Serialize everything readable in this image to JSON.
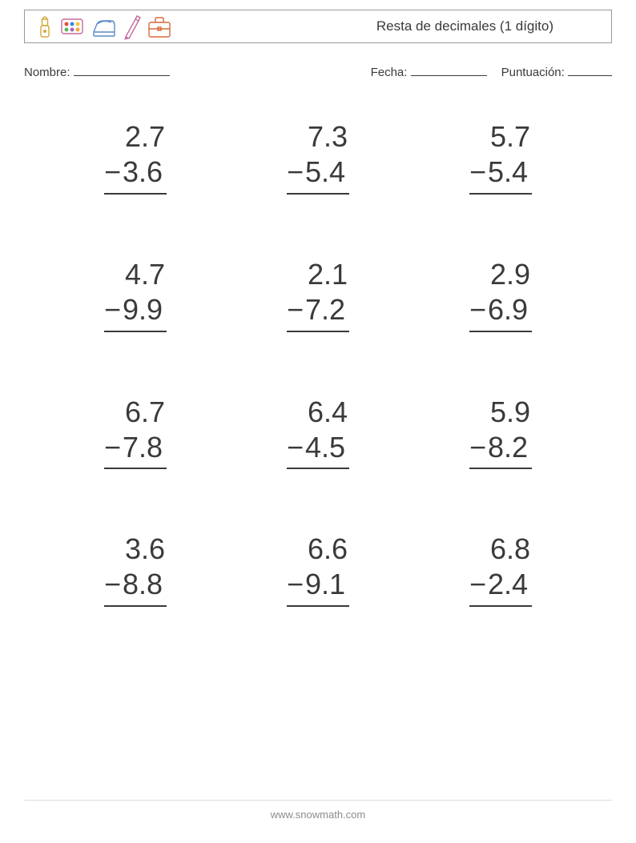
{
  "header": {
    "title": "Resta de decimales (1 dígito)",
    "title_fontsize": 17,
    "border_color": "#9a9a9a",
    "icons": [
      "glue-icon",
      "palette-icon",
      "stapler-icon",
      "pencil-icon",
      "briefcase-icon"
    ]
  },
  "info": {
    "name_label": "Nombre:",
    "date_label": "Fecha:",
    "score_label": "Puntuación:"
  },
  "worksheet": {
    "type": "vertical_subtraction",
    "operator": "−",
    "columns": 3,
    "rows": 4,
    "number_fontsize": 36,
    "number_color": "#3a3a3a",
    "rule_color": "#3a3a3a",
    "background_color": "#ffffff",
    "problems": [
      {
        "minuend": "2.7",
        "subtrahend": "3.6"
      },
      {
        "minuend": "7.3",
        "subtrahend": "5.4"
      },
      {
        "minuend": "5.7",
        "subtrahend": "5.4"
      },
      {
        "minuend": "4.7",
        "subtrahend": "9.9"
      },
      {
        "minuend": "2.1",
        "subtrahend": "7.2"
      },
      {
        "minuend": "2.9",
        "subtrahend": "6.9"
      },
      {
        "minuend": "6.7",
        "subtrahend": "7.8"
      },
      {
        "minuend": "6.4",
        "subtrahend": "4.5"
      },
      {
        "minuend": "5.9",
        "subtrahend": "8.2"
      },
      {
        "minuend": "3.6",
        "subtrahend": "8.8"
      },
      {
        "minuend": "6.6",
        "subtrahend": "9.1"
      },
      {
        "minuend": "6.8",
        "subtrahend": "2.4"
      }
    ]
  },
  "footer": {
    "text": "www.snowmath.com",
    "fontsize": 13,
    "color": "#8c8c8c",
    "line_color": "#dcdcdc"
  }
}
